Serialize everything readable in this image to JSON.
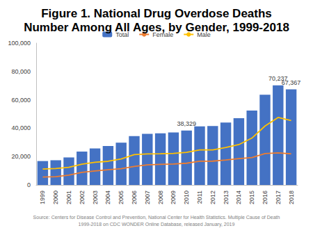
{
  "chart_data": {
    "type": "bar",
    "title": "Figure 1. National Drug Overdose Deaths\nNumber Among All Ages, by Gender, 1999-2018",
    "source": [
      "Source: Centers for Disease Control and Prevention, National Center for Health Statistics. Multiple Cause of Death",
      "1999-2018 on CDC WONDER Online Database, released January, 2019"
    ],
    "categories": [
      "1999",
      "2000",
      "2001",
      "2002",
      "2003",
      "2004",
      "2005",
      "2006",
      "2007",
      "2008",
      "2009",
      "2010",
      "2011",
      "2012",
      "2013",
      "2014",
      "2015",
      "2016",
      "2017",
      "2018"
    ],
    "series": [
      {
        "name": "Total",
        "type": "bar",
        "color": "#4472c4",
        "values": [
          16849,
          17415,
          19394,
          23518,
          25785,
          27424,
          29813,
          34425,
          36010,
          36450,
          37004,
          38329,
          41340,
          41502,
          43982,
          47055,
          52404,
          63632,
          70237,
          67367
        ],
        "value_labels": [
          null,
          null,
          null,
          null,
          null,
          null,
          null,
          null,
          null,
          null,
          null,
          "38,329",
          null,
          null,
          null,
          null,
          null,
          null,
          "70,237",
          "67,367"
        ]
      },
      {
        "name": "Female",
        "type": "line",
        "color": "#ed7d31",
        "values": [
          5591,
          5852,
          6956,
          8909,
          9835,
          10752,
          11463,
          13086,
          14177,
          14487,
          14773,
          15323,
          16694,
          16797,
          17616,
          18616,
          19338,
          22074,
          22637,
          21945
        ]
      },
      {
        "name": "Male",
        "type": "line",
        "color": "#ffc000",
        "values": [
          11258,
          11563,
          12438,
          14609,
          15950,
          16672,
          18350,
          21339,
          21833,
          21963,
          22231,
          23006,
          24646,
          24705,
          26366,
          28439,
          33066,
          41558,
          47600,
          45422
        ]
      }
    ],
    "ylim": [
      0,
      100000
    ],
    "yticks": [
      0,
      {
        "value": 20000,
        "label": "20,000"
      },
      {
        "value": 40000,
        "label": "40,000"
      },
      {
        "value": 60000,
        "label": "60,000"
      },
      {
        "value": 80000,
        "label": "80,000"
      },
      {
        "value": 100000,
        "label": "100,000"
      }
    ],
    "grid": false,
    "legend": "top",
    "data_labels": true
  }
}
